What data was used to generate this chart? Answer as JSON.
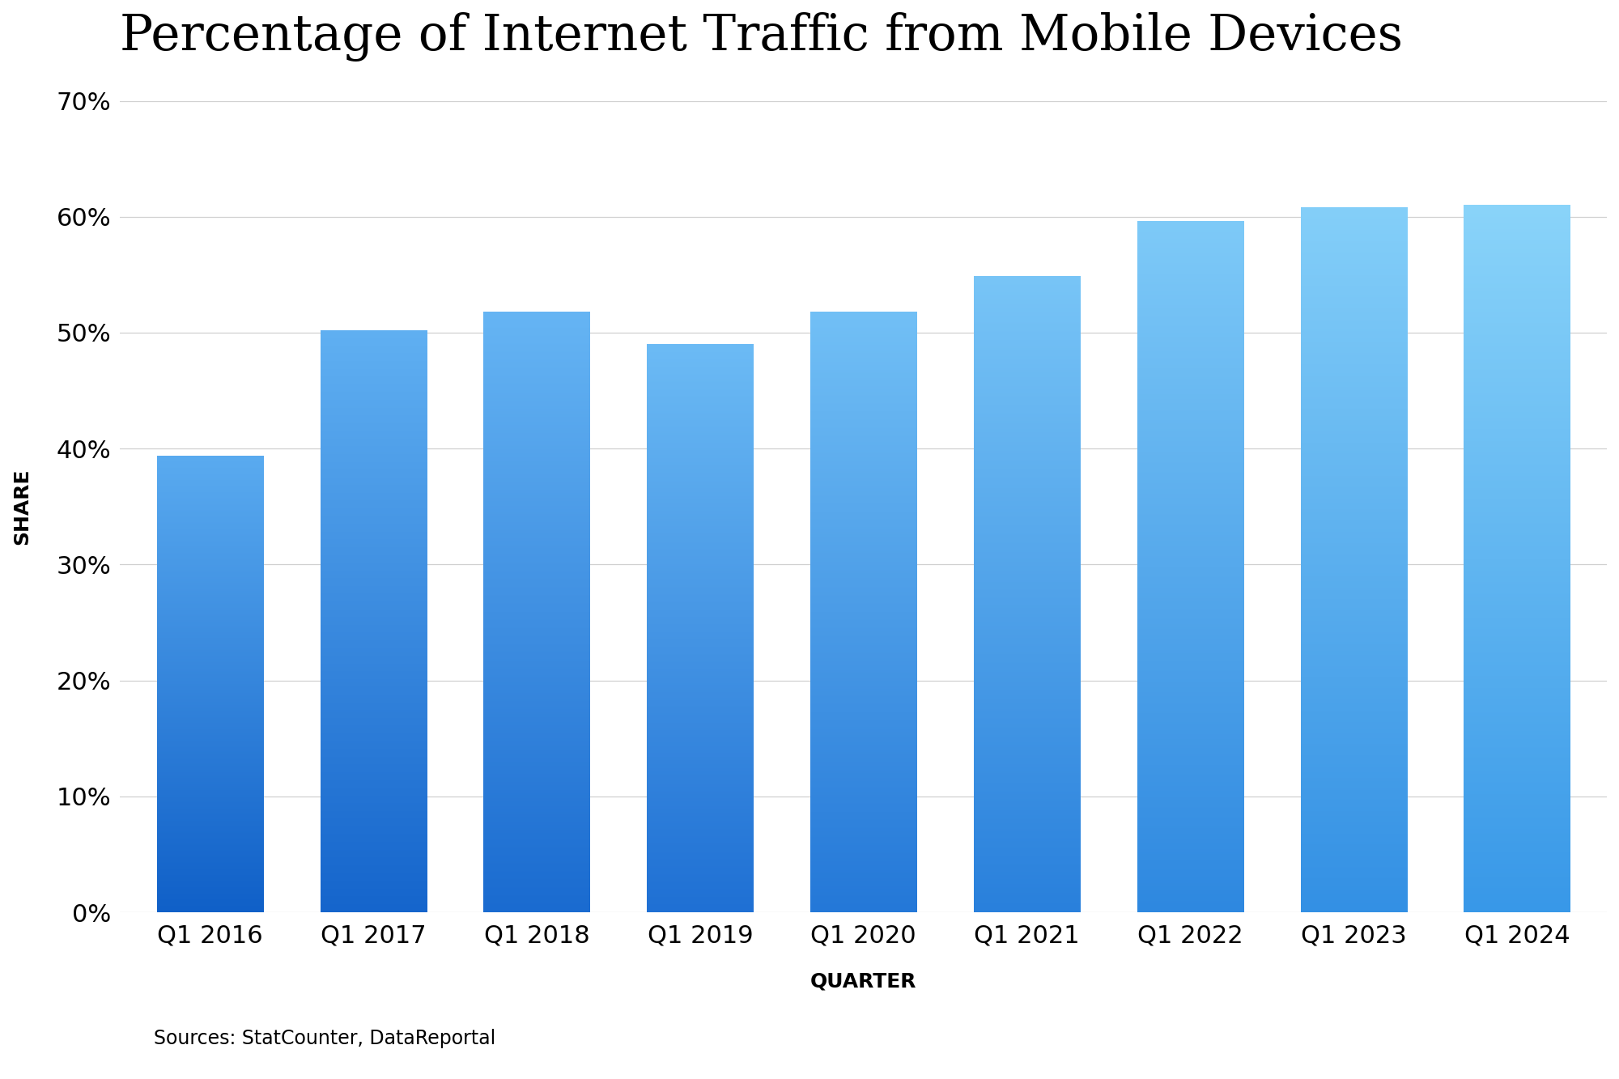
{
  "categories": [
    "Q1 2016",
    "Q1 2017",
    "Q1 2018",
    "Q1 2019",
    "Q1 2020",
    "Q1 2021",
    "Q1 2022",
    "Q1 2023",
    "Q1 2024"
  ],
  "values": [
    0.394,
    0.502,
    0.518,
    0.49,
    0.518,
    0.549,
    0.596,
    0.608,
    0.61
  ],
  "title": "Percentage of Internet Traffic from Mobile Devices",
  "xlabel": "QUARTER",
  "ylabel": "SHARE",
  "ylim": [
    0,
    0.7
  ],
  "yticks": [
    0.0,
    0.1,
    0.2,
    0.3,
    0.4,
    0.5,
    0.6,
    0.7
  ],
  "bar_colors_bottom": [
    "#1060c8",
    "#1565cc",
    "#1a6bd0",
    "#1f70d4",
    "#2478d8",
    "#2980dc",
    "#2e88e0",
    "#3390e4",
    "#3898e8"
  ],
  "bar_colors_top": [
    "#5aabf0",
    "#60b0f2",
    "#66b5f4",
    "#6cbbf5",
    "#72c0f6",
    "#78c5f7",
    "#7ecaf8",
    "#84cff9",
    "#8ad4fa"
  ],
  "background_color": "#ffffff",
  "grid_color": "#d0d0d0",
  "source_text": "Sources: StatCounter, DataReportal",
  "title_fontsize": 44,
  "axis_label_fontsize": 18,
  "tick_fontsize": 22,
  "source_fontsize": 17,
  "bar_width": 0.65
}
